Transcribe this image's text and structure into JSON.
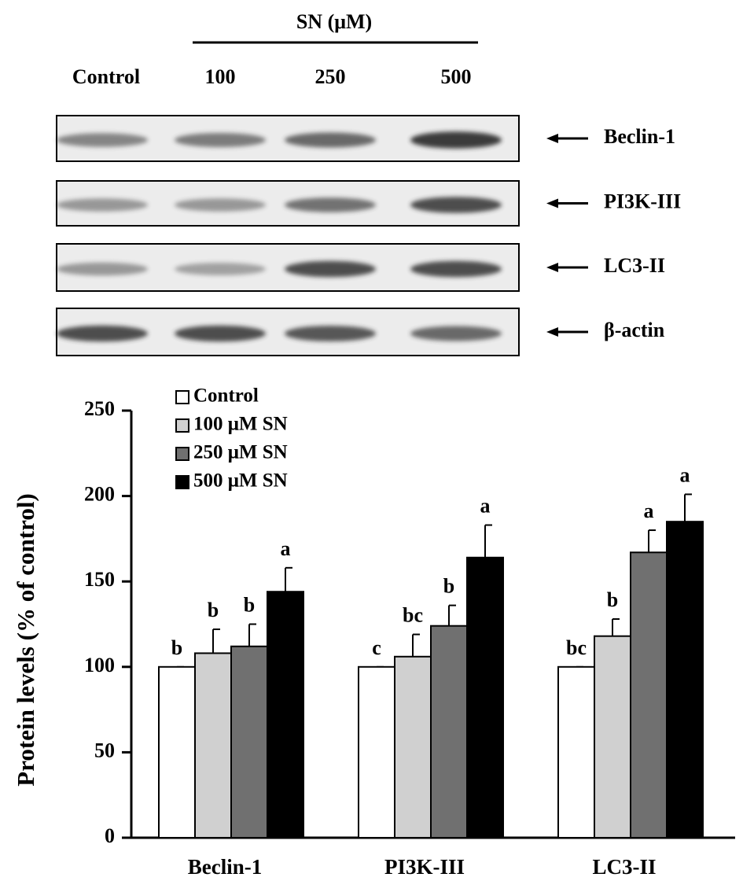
{
  "blot": {
    "header": "SN (μM)",
    "lanes": [
      "Control",
      "100",
      "250",
      "500"
    ],
    "bands": [
      "Beclin-1",
      "PI3K-III",
      "LC3-II",
      "β-actin"
    ]
  },
  "chart_data": {
    "type": "bar",
    "y_label": "Protein levels (% of control)",
    "categories": [
      "Beclin-1",
      "PI3K-III",
      "LC3-II"
    ],
    "series": [
      {
        "name": "Control",
        "color": "#ffffff",
        "values": [
          100,
          100,
          100
        ],
        "errors": [
          0,
          0,
          0
        ],
        "annotations": [
          "b",
          "c",
          "bc"
        ]
      },
      {
        "name": "100 μM SN",
        "color": "#d0d0d0",
        "values": [
          108,
          106,
          118
        ],
        "errors": [
          14,
          13,
          10
        ],
        "annotations": [
          "b",
          "bc",
          "b"
        ]
      },
      {
        "name": "250 μM SN",
        "color": "#707070",
        "values": [
          112,
          124,
          167
        ],
        "errors": [
          13,
          12,
          13
        ],
        "annotations": [
          "b",
          "b",
          "a"
        ]
      },
      {
        "name": "500 μM SN",
        "color": "#000000",
        "values": [
          144,
          164,
          185
        ],
        "errors": [
          14,
          19,
          16
        ],
        "annotations": [
          "a",
          "a",
          "a"
        ]
      }
    ],
    "ylim": [
      0,
      250
    ],
    "yticks": [
      0,
      50,
      100,
      150,
      200,
      250
    ],
    "grid": false,
    "legend": "top-left"
  }
}
